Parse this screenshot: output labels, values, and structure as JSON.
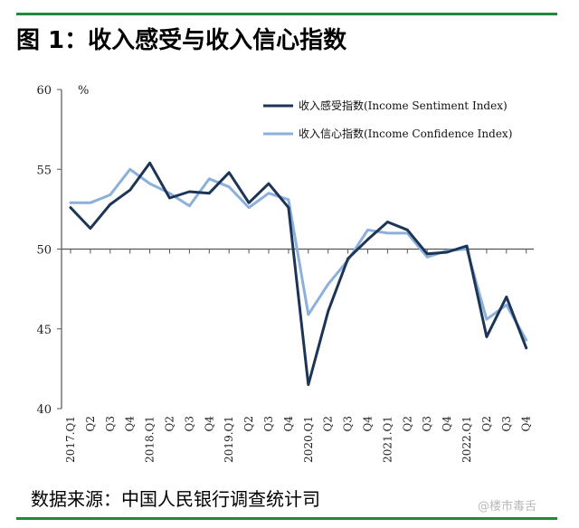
{
  "figure": {
    "title": "图 1：收入感受与收入信心指数",
    "source": "数据来源：中国人民银行调查统计司",
    "watermark": "@楼市毒舌"
  },
  "chart_data": {
    "type": "line",
    "unit": "%",
    "ylim": [
      40,
      60
    ],
    "yticks": [
      40,
      45,
      50,
      55,
      60
    ],
    "x": [
      "2017.Q1",
      "Q2",
      "Q3",
      "Q4",
      "2018.Q1",
      "Q2",
      "Q3",
      "Q4",
      "2019.Q1",
      "Q2",
      "Q3",
      "Q4",
      "2020.Q1",
      "Q2",
      "Q3",
      "Q4",
      "2021.Q1",
      "Q2",
      "Q3",
      "Q4",
      "2022.Q1",
      "Q2",
      "Q3",
      "Q4"
    ],
    "grid": false,
    "legend_position": "top-right",
    "series": [
      {
        "name": "收入感受指数(Income Sentiment Index)",
        "color": "#1c3557",
        "values": [
          52.6,
          51.3,
          52.8,
          53.7,
          55.4,
          53.2,
          53.6,
          53.5,
          54.8,
          52.9,
          54.1,
          52.6,
          41.5,
          46.1,
          49.4,
          50.6,
          51.7,
          51.2,
          49.7,
          49.8,
          50.2,
          44.5,
          47.0,
          43.8
        ]
      },
      {
        "name": "收入信心指数(Income Confidence Index)",
        "color": "#8db0db",
        "values": [
          52.9,
          52.9,
          53.4,
          55.0,
          54.1,
          53.5,
          52.7,
          54.4,
          53.9,
          52.6,
          53.5,
          53.1,
          45.9,
          47.8,
          49.3,
          51.2,
          51.0,
          51.0,
          49.5,
          49.9,
          50.0,
          45.6,
          46.5,
          44.3
        ]
      }
    ]
  }
}
